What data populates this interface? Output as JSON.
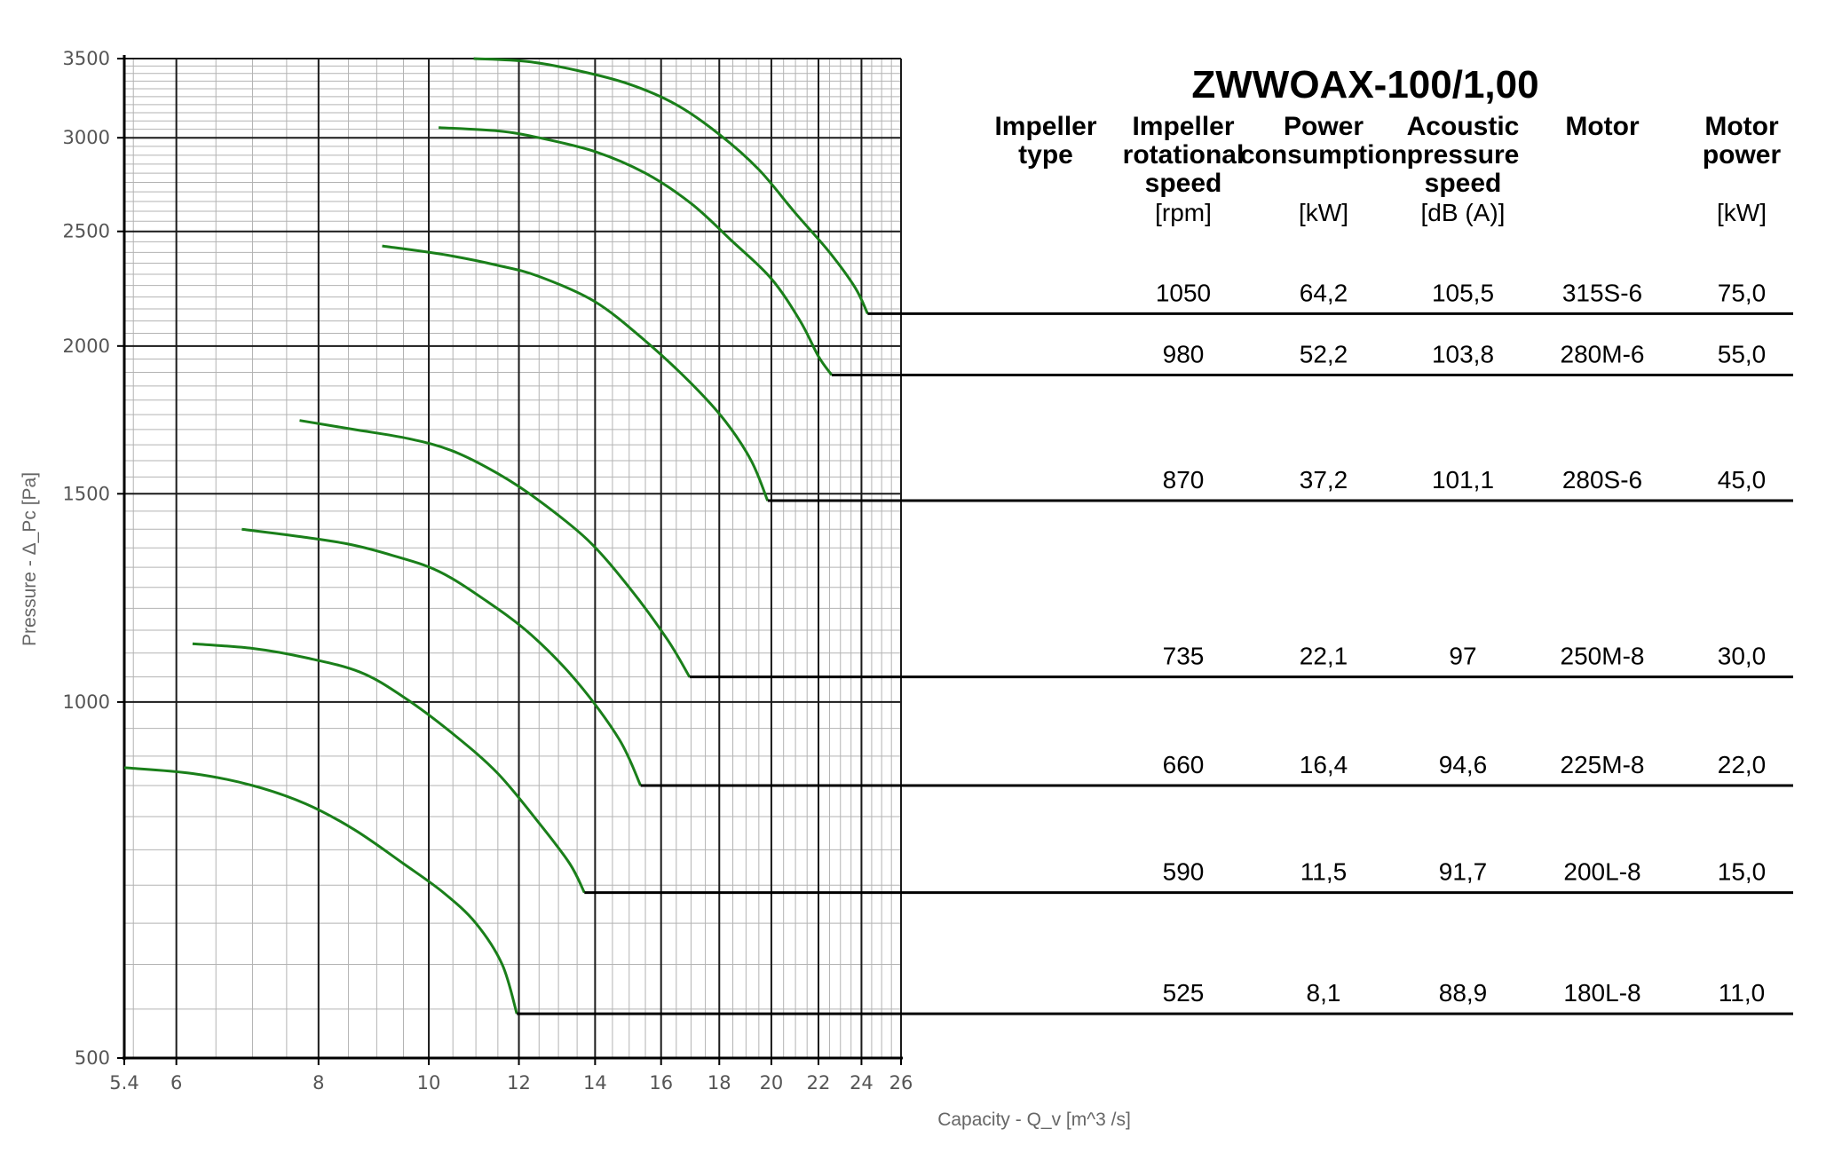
{
  "title": "ZWWOAX-100/1,00",
  "table": {
    "headers": [
      {
        "lines": [
          "Impeller",
          "type"
        ],
        "unit": ""
      },
      {
        "lines": [
          "Impeller",
          "rotational",
          "speed"
        ],
        "unit": "[rpm]"
      },
      {
        "lines": [
          "Power",
          "consumption"
        ],
        "unit": "[kW]"
      },
      {
        "lines": [
          "Acoustic",
          "pressure",
          "speed"
        ],
        "unit": "[dB (A)]"
      },
      {
        "lines": [
          "Motor"
        ],
        "unit": ""
      },
      {
        "lines": [
          "Motor",
          "power"
        ],
        "unit": "[kW]"
      }
    ],
    "rows": [
      {
        "rpm": "1050",
        "power": "64,2",
        "db": "105,5",
        "motor": "315S-6",
        "motor_power": "75,0"
      },
      {
        "rpm": "980",
        "power": "52,2",
        "db": "103,8",
        "motor": "280M-6",
        "motor_power": "55,0"
      },
      {
        "rpm": "870",
        "power": "37,2",
        "db": "101,1",
        "motor": "280S-6",
        "motor_power": "45,0"
      },
      {
        "rpm": "735",
        "power": "22,1",
        "db": "97",
        "motor": "250M-8",
        "motor_power": "30,0"
      },
      {
        "rpm": "660",
        "power": "16,4",
        "db": "94,6",
        "motor": "225M-8",
        "motor_power": "22,0"
      },
      {
        "rpm": "590",
        "power": "11,5",
        "db": "91,7",
        "motor": "200L-8",
        "motor_power": "15,0"
      },
      {
        "rpm": "525",
        "power": "8,1",
        "db": "88,9",
        "motor": "180L-8",
        "motor_power": "11,0"
      }
    ]
  },
  "chart_data": {
    "type": "line",
    "x_scale": "log",
    "y_scale": "log",
    "xlabel": "Capacity - Q_v [m^3 /s]",
    "ylabel": "Pressure - Δ_Pc [Pa]",
    "xlim": [
      5.4,
      26
    ],
    "ylim": [
      500,
      3500
    ],
    "x_ticks": [
      "5.4",
      "6",
      "8",
      "10",
      "12",
      "14",
      "16",
      "18",
      "20",
      "22",
      "24",
      "26"
    ],
    "y_ticks": [
      "500",
      "1000",
      "1500",
      "2000",
      "2500",
      "3000",
      "3500"
    ],
    "grid": true,
    "line_color": "#1a7f1a",
    "series": [
      {
        "rpm": "1050",
        "end_pressure": 2130,
        "points": [
          [
            10.95,
            3500
          ],
          [
            12.2,
            3480
          ],
          [
            13.5,
            3420
          ],
          [
            15.0,
            3330
          ],
          [
            16.5,
            3200
          ],
          [
            18.0,
            3020
          ],
          [
            19.5,
            2820
          ],
          [
            21.0,
            2590
          ],
          [
            22.5,
            2400
          ],
          [
            23.7,
            2240
          ],
          [
            24.3,
            2130
          ]
        ]
      },
      {
        "rpm": "980",
        "end_pressure": 1890,
        "points": [
          [
            10.2,
            3060
          ],
          [
            11.5,
            3040
          ],
          [
            12.5,
            3000
          ],
          [
            14.0,
            2920
          ],
          [
            15.5,
            2800
          ],
          [
            17.0,
            2640
          ],
          [
            18.5,
            2450
          ],
          [
            20.0,
            2280
          ],
          [
            21.2,
            2100
          ],
          [
            22.0,
            1960
          ],
          [
            22.6,
            1890
          ]
        ]
      },
      {
        "rpm": "870",
        "end_pressure": 1480,
        "points": [
          [
            9.1,
            2430
          ],
          [
            10.3,
            2390
          ],
          [
            11.5,
            2340
          ],
          [
            12.5,
            2290
          ],
          [
            14.0,
            2180
          ],
          [
            15.5,
            2020
          ],
          [
            17.0,
            1860
          ],
          [
            18.2,
            1730
          ],
          [
            19.2,
            1600
          ],
          [
            19.85,
            1480
          ]
        ]
      },
      {
        "rpm": "735",
        "end_pressure": 1050,
        "points": [
          [
            7.7,
            1730
          ],
          [
            8.6,
            1700
          ],
          [
            9.6,
            1670
          ],
          [
            10.5,
            1630
          ],
          [
            11.5,
            1560
          ],
          [
            12.5,
            1480
          ],
          [
            13.8,
            1370
          ],
          [
            15.0,
            1250
          ],
          [
            16.2,
            1130
          ],
          [
            16.95,
            1050
          ]
        ]
      },
      {
        "rpm": "660",
        "end_pressure": 850,
        "points": [
          [
            6.85,
            1400
          ],
          [
            7.7,
            1380
          ],
          [
            8.5,
            1360
          ],
          [
            9.3,
            1330
          ],
          [
            10.2,
            1290
          ],
          [
            11.2,
            1220
          ],
          [
            12.3,
            1140
          ],
          [
            13.5,
            1040
          ],
          [
            14.7,
            930
          ],
          [
            15.35,
            850
          ]
        ]
      },
      {
        "rpm": "590",
        "end_pressure": 690,
        "points": [
          [
            6.2,
            1120
          ],
          [
            7.0,
            1110
          ],
          [
            7.8,
            1090
          ],
          [
            8.7,
            1060
          ],
          [
            9.5,
            1010
          ],
          [
            10.5,
            940
          ],
          [
            11.5,
            870
          ],
          [
            12.5,
            790
          ],
          [
            13.3,
            730
          ],
          [
            13.7,
            690
          ]
        ]
      },
      {
        "rpm": "525",
        "end_pressure": 545,
        "points": [
          [
            5.4,
            880
          ],
          [
            6.2,
            870
          ],
          [
            7.0,
            850
          ],
          [
            7.8,
            820
          ],
          [
            8.6,
            780
          ],
          [
            9.5,
            730
          ],
          [
            10.3,
            690
          ],
          [
            11.0,
            650
          ],
          [
            11.6,
            600
          ],
          [
            11.95,
            545
          ]
        ]
      }
    ]
  }
}
